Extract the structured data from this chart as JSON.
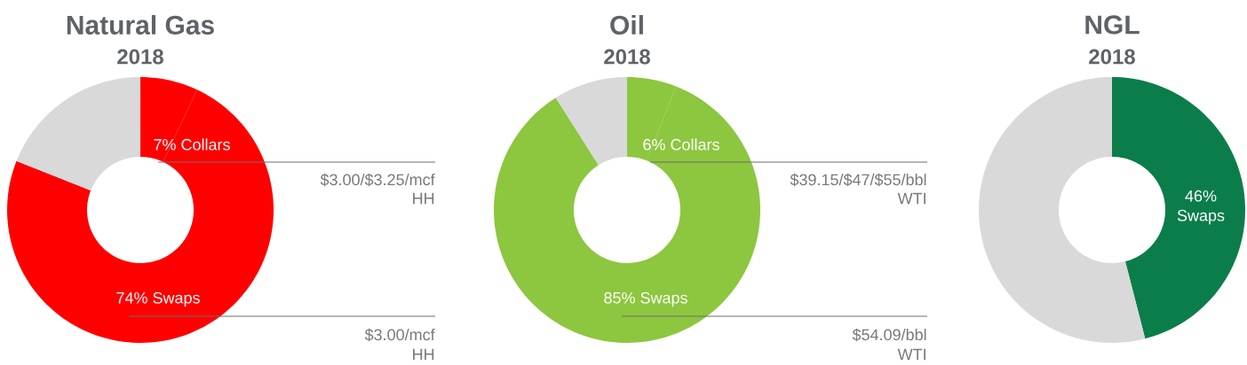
{
  "chart_data": [
    {
      "type": "donut",
      "title": "Natural Gas",
      "subtitle": "2018",
      "categories": [
        "Collars",
        "Swaps",
        null
      ],
      "values": [
        7,
        74,
        19
      ],
      "colors": [
        "#ff0000",
        "#ff0000",
        "#d9d9d9"
      ],
      "value_labels": [
        "7%",
        "74%",
        null
      ],
      "annotations": [
        "$3.00/$3.25/mcf",
        "HH",
        "$3.00/mcf",
        "HH"
      ]
    },
    {
      "type": "donut",
      "title": "Oil",
      "subtitle": "2018",
      "categories": [
        "Collars",
        "Swaps",
        null
      ],
      "values": [
        6,
        85,
        9
      ],
      "colors": [
        "#8dc63f",
        "#8dc63f",
        "#d9d9d9"
      ],
      "value_labels": [
        "6%",
        "85%",
        null
      ],
      "annotations": [
        "$39.15/$47/$55/bbl",
        "WTI",
        "$54.09/bbl",
        "WTI"
      ]
    },
    {
      "type": "donut",
      "title": "NGL",
      "subtitle": "2018",
      "categories": [
        "Swaps",
        null
      ],
      "values": [
        46,
        54
      ],
      "colors": [
        "#0b7d4b",
        "#d9d9d9"
      ],
      "value_labels": [
        "46%",
        null
      ]
    }
  ]
}
